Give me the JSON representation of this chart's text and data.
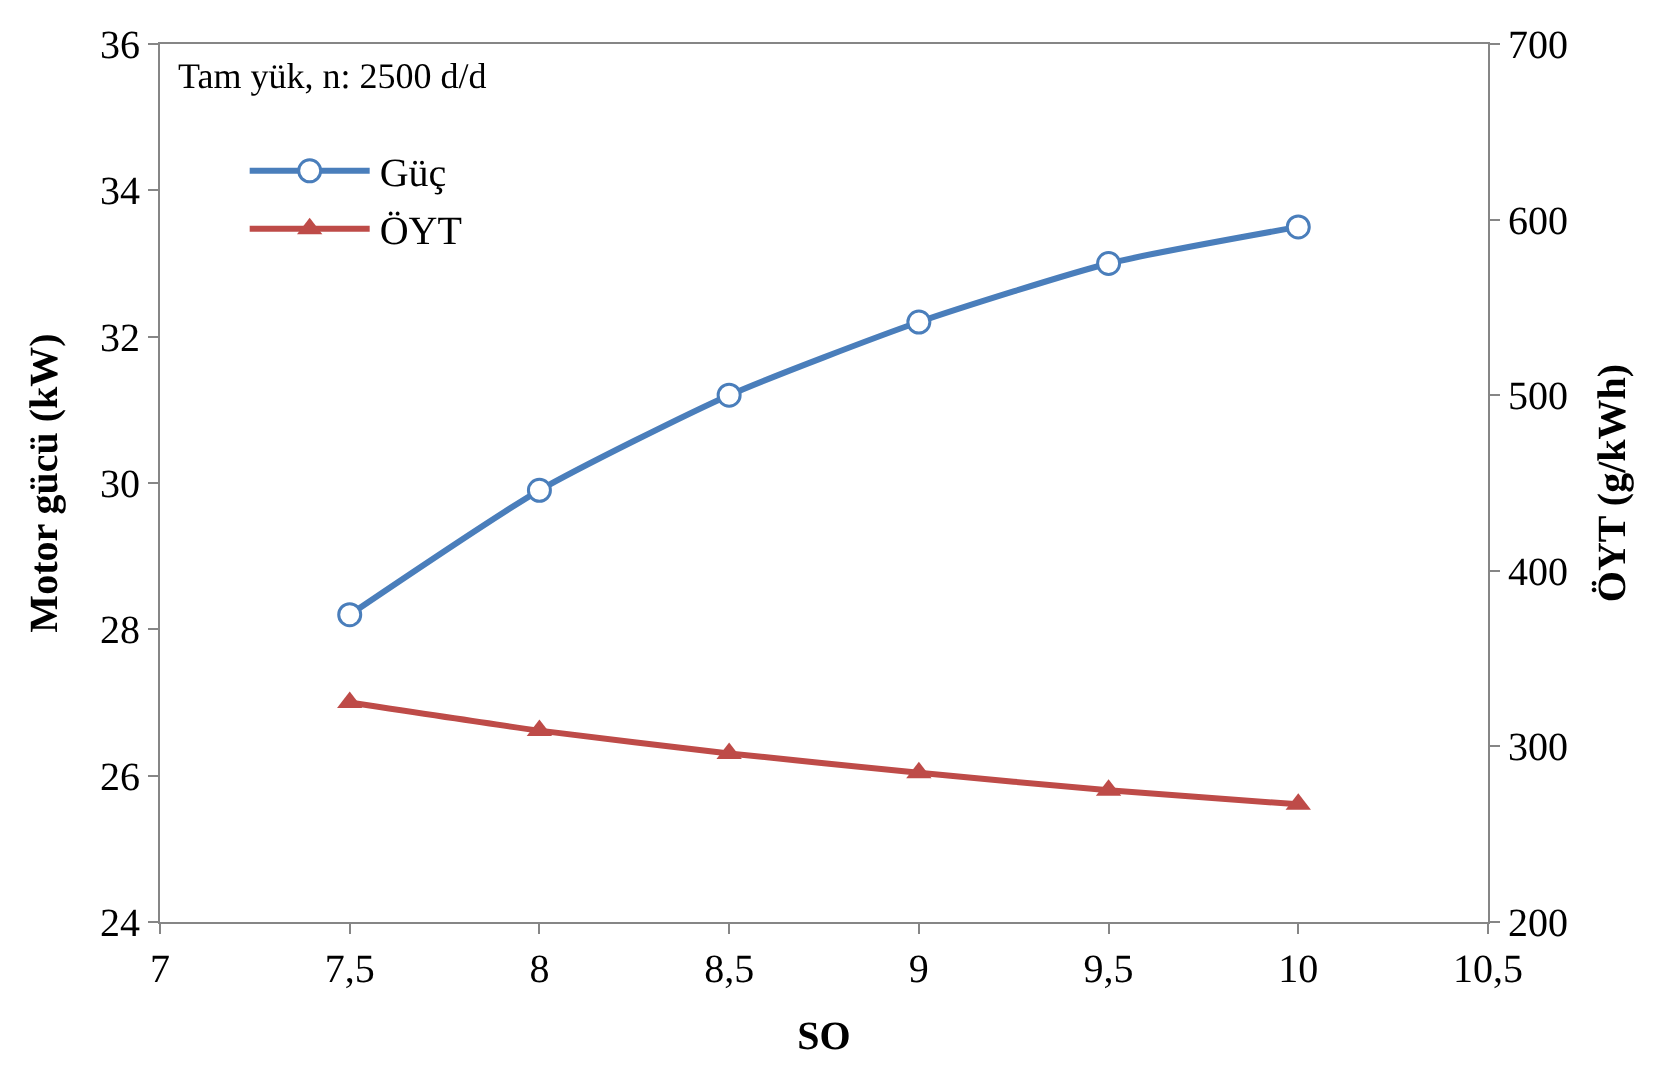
{
  "chart_data": {
    "type": "line",
    "xlabel": "SO",
    "ylabel": "Motor gücü (kW)",
    "y2label": "ÖYT (g/kWh)",
    "annotations": [
      "Tam yük, n: 2500 d/d"
    ],
    "x": [
      7.5,
      8,
      8.5,
      9,
      9.5,
      10
    ],
    "series": [
      {
        "name": "Güç",
        "color": "#4a7ebb",
        "values": [
          28.2,
          29.9,
          31.2,
          32.2,
          33.0,
          33.5
        ],
        "marker": "circle"
      },
      {
        "name": "ÖYT",
        "color": "#be4b48",
        "values": [
          325,
          309,
          296,
          285,
          275,
          267
        ],
        "marker": "triangle",
        "axis": "y2"
      }
    ],
    "xlim": [
      7,
      10.5
    ],
    "xticks": [
      7,
      {
        "value": 7.5,
        "label": "7,5"
      },
      8,
      {
        "value": 8.5,
        "label": "8,5"
      },
      9,
      {
        "value": 9.5,
        "label": "9,5"
      },
      10,
      {
        "value": 10.5,
        "label": "10,5"
      }
    ],
    "ylim": [
      24,
      36
    ],
    "yticks": [
      24,
      26,
      28,
      30,
      32,
      34,
      36
    ],
    "y2lim": [
      200,
      700
    ],
    "y2ticks": [
      200,
      300,
      400,
      500,
      600,
      700
    ],
    "legend": "top left",
    "line_style": "solid"
  }
}
